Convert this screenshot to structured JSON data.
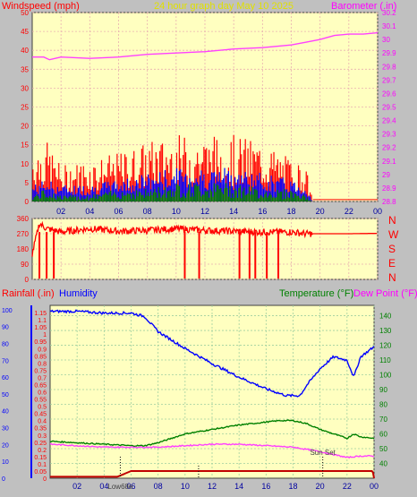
{
  "chart_data": [
    {
      "type": "line",
      "title": "24 hour graph day   May 10 2025",
      "ylabel_left": "Windspeed (mph)",
      "ylabel_right": "Barometer (.in)",
      "x_ticks": [
        "02",
        "04",
        "06",
        "08",
        "10",
        "12",
        "14",
        "16",
        "18",
        "20",
        "22",
        "00"
      ],
      "ylim_left": [
        0,
        50
      ],
      "y_ticks_left": [
        0,
        5,
        10,
        15,
        20,
        25,
        30,
        35,
        40,
        45,
        50
      ],
      "ylim_right": [
        28.8,
        30.2
      ],
      "y_ticks_right": [
        "28.8",
        "28.9",
        "29",
        "29.1",
        "29.2",
        "29.3",
        "29.4",
        "29.5",
        "29.6",
        "29.7",
        "29.8",
        "29.9",
        "30",
        "30.1",
        "30.2"
      ],
      "series": [
        {
          "name": "Barometer",
          "axis": "right",
          "color": "#ff40ff",
          "x": [
            0,
            0.8,
            1.2,
            2,
            4,
            6,
            8,
            10,
            12,
            14,
            16,
            18,
            19,
            20,
            21,
            22,
            23,
            24
          ],
          "y": [
            29.87,
            29.87,
            29.85,
            29.87,
            29.86,
            29.87,
            29.89,
            29.9,
            29.91,
            29.93,
            29.94,
            29.96,
            29.98,
            30.0,
            30.03,
            30.04,
            30.04,
            30.05
          ]
        },
        {
          "name": "Wind gust",
          "axis": "left",
          "color": "#ff0000",
          "x": [
            0,
            1,
            2,
            4,
            6,
            8,
            10,
            12,
            14,
            16,
            18,
            19,
            19.5
          ],
          "y": [
            9,
            10,
            6,
            7,
            8,
            10,
            11,
            11,
            11,
            10,
            7,
            6,
            0
          ]
        },
        {
          "name": "Wind speed avg",
          "axis": "left",
          "color": "#0000ff",
          "x": [
            0,
            1,
            2,
            4,
            6,
            8,
            10,
            12,
            14,
            16,
            18,
            19,
            19.5
          ],
          "y": [
            3,
            4,
            3,
            3,
            4,
            5,
            6,
            6,
            6,
            5,
            4,
            3,
            0
          ]
        },
        {
          "name": "Wind speed",
          "axis": "left",
          "color": "#008000",
          "x": [
            0,
            1,
            2,
            4,
            6,
            8,
            10,
            12,
            14,
            16,
            18,
            19,
            19.5
          ],
          "y": [
            1,
            2,
            1,
            1,
            2,
            2,
            3,
            3,
            3,
            2,
            2,
            1,
            0
          ]
        }
      ]
    },
    {
      "type": "line",
      "ylabel_right": [
        "N",
        "W",
        "S",
        "E",
        "N"
      ],
      "y_ticks_left": [
        0,
        90,
        180,
        270,
        360
      ],
      "ylim": [
        0,
        360
      ],
      "series": [
        {
          "name": "Wind direction",
          "color": "#ff0000",
          "x": [
            0,
            0.5,
            1,
            2,
            4,
            6,
            8,
            10,
            12,
            14,
            16,
            18,
            19,
            20,
            22,
            24
          ],
          "y": [
            150,
            330,
            300,
            280,
            300,
            285,
            290,
            300,
            290,
            285,
            280,
            280,
            270,
            270,
            270,
            272
          ],
          "dips": [
            0.5,
            1.0,
            1.5,
            10.6,
            11.6,
            14.4,
            15.1,
            15.5,
            16.3,
            17.1
          ]
        }
      ]
    },
    {
      "type": "line",
      "ylabel_left_1": "Rainfall (.in)",
      "ylabel_left_2": "Humidity",
      "ylabel_right_1": "Temperature (°F)",
      "ylabel_right_2": "Dew Point (°F)",
      "x_ticks": [
        "02",
        "04",
        "06",
        "08",
        "10",
        "12",
        "14",
        "16",
        "18",
        "20",
        "22",
        "00"
      ],
      "annotations": [
        {
          "text": "Low68e",
          "x": 5.2
        },
        {
          "text": "Sun Set",
          "x": 20.2
        }
      ],
      "ylim_rain": [
        0,
        1.2
      ],
      "y_ticks_rain": [
        "0",
        "0.05",
        "0.1",
        "0.15",
        "0.2",
        "0.25",
        "0.3",
        "0.35",
        "0.4",
        "0.45",
        "0.5",
        "0.55",
        "0.6",
        "0.65",
        "0.7",
        "0.75",
        "0.8",
        "0.85",
        "0.9",
        "0.95",
        "1",
        "1.05",
        "1.1",
        "1.15"
      ],
      "ylim_humidity": [
        0,
        100
      ],
      "y_ticks_humidity": [
        0,
        10,
        20,
        30,
        40,
        50,
        60,
        70,
        80,
        90,
        100
      ],
      "ylim_temp": [
        30,
        147
      ],
      "y_ticks_temp": [
        40,
        50,
        60,
        70,
        80,
        90,
        100,
        110,
        120,
        130,
        140
      ],
      "series": [
        {
          "name": "Humidity",
          "axis": "humidity",
          "color": "#0000ff",
          "x": [
            0,
            2,
            4,
            6,
            7,
            8,
            9,
            10,
            12,
            14,
            16,
            17.5,
            18.5,
            19,
            20,
            21,
            22,
            22.5,
            23,
            24
          ],
          "y": [
            99,
            99,
            98,
            98,
            96,
            87,
            82,
            77,
            68,
            60,
            53,
            49,
            49,
            55,
            65,
            72,
            70,
            60,
            72,
            78
          ]
        },
        {
          "name": "Temperature",
          "axis": "temp",
          "color": "#008000",
          "x": [
            0,
            2,
            4,
            6,
            7,
            8,
            9,
            10,
            12,
            14,
            16,
            17,
            18,
            19,
            20,
            21,
            22,
            22.5,
            23,
            24
          ],
          "y": [
            55,
            54,
            53,
            52,
            52,
            54,
            57,
            60,
            63,
            66,
            68,
            69,
            69,
            67,
            63,
            60,
            57,
            60,
            58,
            57
          ]
        },
        {
          "name": "Dew Point",
          "axis": "temp",
          "color": "#ff40ff",
          "x": [
            0,
            2,
            4,
            6,
            8,
            10,
            12,
            14,
            16,
            18,
            20,
            21,
            22,
            23,
            24
          ],
          "y": [
            53,
            52,
            51,
            51,
            51,
            52,
            53,
            53,
            52,
            51,
            48,
            46,
            44,
            45,
            45
          ]
        },
        {
          "name": "Rainfall",
          "axis": "rain",
          "color": "#c00000",
          "x": [
            0,
            2,
            4,
            5,
            6,
            8,
            10,
            12,
            14,
            16,
            18,
            20,
            22,
            23.9,
            24
          ],
          "y": [
            0.01,
            0.01,
            0.01,
            0.01,
            0.05,
            0.05,
            0.05,
            0.05,
            0.05,
            0.05,
            0.05,
            0.05,
            0.05,
            0.05,
            0.0
          ]
        }
      ]
    }
  ]
}
